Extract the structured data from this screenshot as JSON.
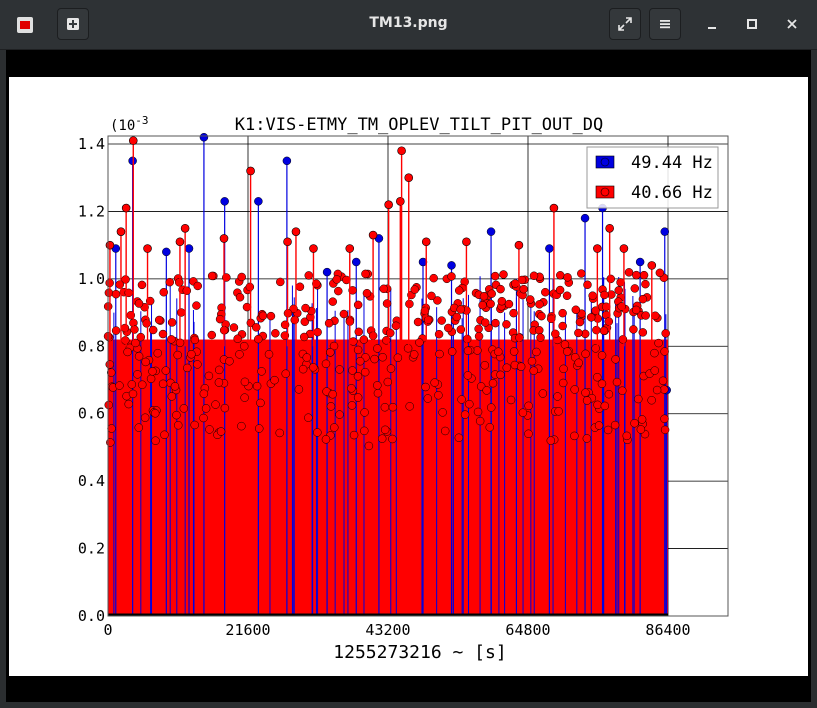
{
  "window": {
    "title": "TM13.png",
    "icons": {
      "app": "image-viewer-icon",
      "new": "new-window-icon",
      "fullscreen": "fullscreen-icon",
      "menu": "hamburger-menu-icon",
      "minimize": "minimize-icon",
      "maximize": "maximize-icon",
      "close": "close-icon"
    }
  },
  "chart_data": {
    "type": "scatter",
    "title": "K1:VIS-ETMY_TM_OPLEV_TILT_PIT_OUT_DQ",
    "xlabel": "1255273216 ~ [s]",
    "ylabel": "",
    "y_multiplier_label": "(10",
    "y_multiplier_exp": "-3",
    "xlim": [
      0,
      86400
    ],
    "ylim": [
      0,
      1.4
    ],
    "x_ticks": [
      "0",
      "21600",
      "43200",
      "64800",
      "86400"
    ],
    "y_ticks": [
      "0.0",
      "0.2",
      "0.4",
      "0.6",
      "0.8",
      "1.0",
      "1.2",
      "1.4"
    ],
    "grid": true,
    "legend_position": "top-right",
    "series": [
      {
        "name": "49.44 Hz",
        "color": "#0000e0",
        "peaks": [
          {
            "x": 1200,
            "y": 1.09
          },
          {
            "x": 3800,
            "y": 1.35
          },
          {
            "x": 9000,
            "y": 1.08
          },
          {
            "x": 12500,
            "y": 1.09
          },
          {
            "x": 14800,
            "y": 1.42
          },
          {
            "x": 18000,
            "y": 1.23
          },
          {
            "x": 23200,
            "y": 1.23
          },
          {
            "x": 27600,
            "y": 1.35
          },
          {
            "x": 33800,
            "y": 1.02
          },
          {
            "x": 38300,
            "y": 1.05
          },
          {
            "x": 41800,
            "y": 1.12
          },
          {
            "x": 48600,
            "y": 1.05
          },
          {
            "x": 53000,
            "y": 1.04
          },
          {
            "x": 59100,
            "y": 1.14
          },
          {
            "x": 68100,
            "y": 1.09
          },
          {
            "x": 73600,
            "y": 1.18
          },
          {
            "x": 76300,
            "y": 1.21
          },
          {
            "x": 82100,
            "y": 1.05
          },
          {
            "x": 85900,
            "y": 1.14
          },
          {
            "x": 86200,
            "y": 0.67
          }
        ]
      },
      {
        "name": "40.66 Hz",
        "color": "#ff0000",
        "peaks": [
          {
            "x": 300,
            "y": 1.1
          },
          {
            "x": 2000,
            "y": 1.14
          },
          {
            "x": 2800,
            "y": 1.21
          },
          {
            "x": 3900,
            "y": 1.41
          },
          {
            "x": 6100,
            "y": 1.09
          },
          {
            "x": 11100,
            "y": 1.11
          },
          {
            "x": 11900,
            "y": 1.15
          },
          {
            "x": 17900,
            "y": 1.12
          },
          {
            "x": 22000,
            "y": 1.32
          },
          {
            "x": 27700,
            "y": 1.11
          },
          {
            "x": 29000,
            "y": 1.14
          },
          {
            "x": 31700,
            "y": 1.09
          },
          {
            "x": 37300,
            "y": 1.09
          },
          {
            "x": 40900,
            "y": 1.13
          },
          {
            "x": 43300,
            "y": 1.22
          },
          {
            "x": 45100,
            "y": 1.23
          },
          {
            "x": 45300,
            "y": 1.38
          },
          {
            "x": 46400,
            "y": 1.3
          },
          {
            "x": 49100,
            "y": 1.11
          },
          {
            "x": 55300,
            "y": 1.11
          },
          {
            "x": 63400,
            "y": 1.1
          },
          {
            "x": 68800,
            "y": 1.21
          },
          {
            "x": 75500,
            "y": 1.09
          },
          {
            "x": 77400,
            "y": 1.15
          },
          {
            "x": 79600,
            "y": 1.09
          },
          {
            "x": 83900,
            "y": 1.04
          }
        ]
      }
    ]
  }
}
